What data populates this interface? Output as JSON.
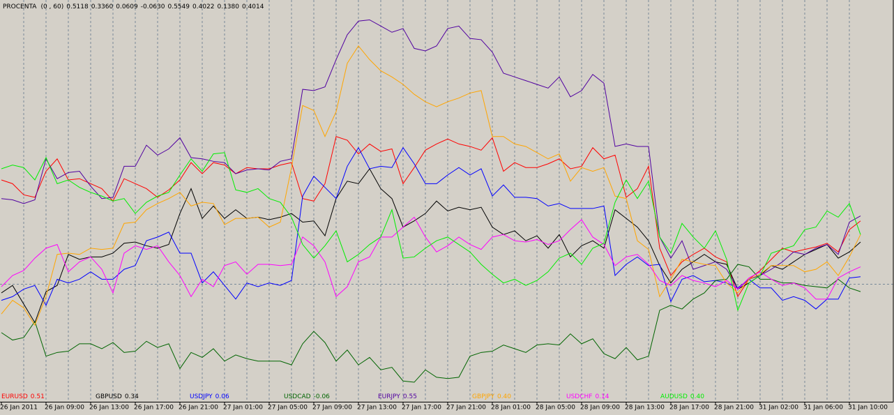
{
  "chart_data": {
    "type": "line",
    "indicator": "PROCENTA",
    "params": "(0 , 60)",
    "categories": [
      "26 Jan 2011",
      null,
      null,
      null,
      "26 Jan 09:00",
      null,
      null,
      null,
      "26 Jan 13:00",
      null,
      null,
      null,
      "26 Jan 17:00",
      null,
      null,
      null,
      "26 Jan 21:00",
      null,
      null,
      null,
      "27 Jan 01:00",
      null,
      null,
      null,
      "27 Jan 05:00",
      null,
      null,
      null,
      "27 Jan 09:00",
      null,
      null,
      null,
      "27 Jan 13:00",
      null,
      null,
      null,
      "27 Jan 17:00",
      null,
      null,
      null,
      "27 Jan 21:00",
      null,
      null,
      null,
      "28 Jan 01:00",
      null,
      null,
      null,
      "28 Jan 05:00",
      null,
      null,
      null,
      "28 Jan 09:00",
      null,
      null,
      null,
      "28 Jan 13:00",
      null,
      null,
      null,
      "28 Jan 17:00",
      null,
      null,
      null,
      "28 Jan 21:00",
      null,
      null,
      null,
      "31 Jan 02:00",
      null,
      null,
      null,
      "31 Jan 06:00",
      null,
      null,
      null,
      "31 Jan 10:00",
      null
    ],
    "ylim": [
      -0.95,
      2.29
    ],
    "hline": 0,
    "grid": true,
    "series": [
      {
        "name": "EURUSD",
        "color": "#ff0000",
        "current": 0.5118,
        "current_label": "0.5118",
        "legend_label": "0.51",
        "values": [
          0.84,
          0.81,
          0.72,
          0.7,
          0.91,
          1.01,
          0.84,
          0.85,
          0.81,
          0.77,
          0.67,
          0.85,
          0.81,
          0.77,
          0.7,
          0.76,
          0.84,
          0.98,
          0.89,
          0.98,
          0.96,
          0.89,
          0.94,
          0.93,
          0.93,
          0.96,
          0.98,
          0.69,
          0.67,
          0.81,
          1.19,
          1.16,
          1.05,
          1.13,
          1.07,
          1.09,
          0.81,
          0.94,
          1.08,
          1.13,
          1.17,
          1.13,
          1.11,
          1.08,
          1.18,
          0.91,
          0.98,
          0.94,
          0.94,
          0.97,
          1.01,
          0.93,
          0.95,
          1.1,
          1.01,
          1.04,
          0.7,
          0.77,
          0.95,
          0.29,
          0.07,
          0.18,
          0.24,
          0.29,
          0.22,
          0.18,
          -0.1,
          0.04,
          0.11,
          0.2,
          0.29,
          0.26,
          0.28,
          0.3,
          0.33,
          0.26,
          0.44,
          0.51
        ]
      },
      {
        "name": "GBPUSD",
        "color": "#000000",
        "current": 0.336,
        "current_label": "0.3360",
        "legend_label": "0.34",
        "values": [
          -0.07,
          -0.01,
          -0.16,
          -0.31,
          -0.06,
          -0.01,
          0.24,
          0.2,
          0.22,
          0.22,
          0.25,
          0.33,
          0.34,
          0.31,
          0.29,
          0.32,
          0.57,
          0.77,
          0.53,
          0.63,
          0.53,
          0.6,
          0.53,
          0.54,
          0.52,
          0.54,
          0.57,
          0.5,
          0.51,
          0.39,
          0.69,
          0.83,
          0.81,
          0.93,
          0.77,
          0.69,
          0.46,
          0.51,
          0.57,
          0.67,
          0.59,
          0.62,
          0.6,
          0.62,
          0.46,
          0.4,
          0.43,
          0.35,
          0.39,
          0.29,
          0.4,
          0.22,
          0.31,
          0.35,
          0.29,
          0.6,
          0.53,
          0.46,
          0.35,
          0.15,
          0.01,
          0.12,
          0.18,
          0.24,
          0.18,
          0.16,
          -0.04,
          0.01,
          0.07,
          0.15,
          0.12,
          0.18,
          0.24,
          0.28,
          0.32,
          0.21,
          0.26,
          0.34
        ]
      },
      {
        "name": "USDJPY",
        "color": "#0000ff",
        "current": 0.0609,
        "current_label": "0.0609",
        "legend_label": "0.06",
        "values": [
          -0.13,
          -0.1,
          -0.04,
          -0.01,
          -0.17,
          0.04,
          0.01,
          0.04,
          0.1,
          0.04,
          0.04,
          0.12,
          0.15,
          0.35,
          0.38,
          0.42,
          0.25,
          0.25,
          0.01,
          0.1,
          -0.01,
          -0.12,
          0.01,
          -0.02,
          0.01,
          -0.01,
          0.03,
          0.71,
          0.87,
          0.78,
          0.69,
          0.95,
          1.1,
          0.93,
          0.95,
          0.94,
          1.1,
          0.97,
          0.81,
          0.81,
          0.88,
          0.94,
          0.88,
          0.93,
          0.71,
          0.8,
          0.7,
          0.7,
          0.69,
          0.63,
          0.65,
          0.61,
          0.61,
          0.61,
          0.63,
          0.07,
          0.16,
          0.22,
          0.15,
          0.16,
          -0.14,
          0.04,
          0.07,
          0.02,
          0.03,
          0.01,
          -0.03,
          0.04,
          -0.03,
          -0.03,
          -0.13,
          -0.1,
          -0.13,
          -0.2,
          -0.12,
          -0.12,
          0.05,
          0.06
        ]
      },
      {
        "name": "USDCAD",
        "color": "#006400",
        "current": -0.063,
        "current_label": "-0.0630",
        "legend_label": "-0.06",
        "values": [
          -0.39,
          -0.45,
          -0.43,
          -0.3,
          -0.58,
          -0.55,
          -0.54,
          -0.48,
          -0.48,
          -0.52,
          -0.47,
          -0.55,
          -0.54,
          -0.46,
          -0.51,
          -0.48,
          -0.68,
          -0.55,
          -0.59,
          -0.52,
          -0.62,
          -0.57,
          -0.6,
          -0.62,
          -0.62,
          -0.62,
          -0.65,
          -0.48,
          -0.38,
          -0.47,
          -0.62,
          -0.53,
          -0.65,
          -0.59,
          -0.69,
          -0.67,
          -0.78,
          -0.79,
          -0.69,
          -0.75,
          -0.76,
          -0.75,
          -0.58,
          -0.55,
          -0.54,
          -0.49,
          -0.52,
          -0.55,
          -0.49,
          -0.48,
          -0.49,
          -0.4,
          -0.48,
          -0.44,
          -0.56,
          -0.6,
          -0.51,
          -0.61,
          -0.58,
          -0.21,
          -0.17,
          -0.2,
          -0.12,
          -0.07,
          0.03,
          0.04,
          0.16,
          0.14,
          0.04,
          0.04,
          0.01,
          0.01,
          -0.01,
          -0.02,
          -0.03,
          0.04,
          -0.03,
          -0.06
        ]
      },
      {
        "name": "EURJPY",
        "color": "#5000a0",
        "current": 0.5549,
        "current_label": "0.5549",
        "legend_label": "0.55",
        "values": [
          0.69,
          0.68,
          0.65,
          0.68,
          1.01,
          0.85,
          0.9,
          0.91,
          0.79,
          0.69,
          0.7,
          0.95,
          0.95,
          1.12,
          1.04,
          1.09,
          1.18,
          1.02,
          1.01,
          0.99,
          0.98,
          0.89,
          0.92,
          0.93,
          0.92,
          0.99,
          1.01,
          1.57,
          1.56,
          1.59,
          1.81,
          2.01,
          2.12,
          2.13,
          2.08,
          2.03,
          2.06,
          1.9,
          1.88,
          1.92,
          2.06,
          2.08,
          1.98,
          1.97,
          1.87,
          1.7,
          1.67,
          1.64,
          1.61,
          1.58,
          1.67,
          1.51,
          1.56,
          1.69,
          1.62,
          1.11,
          1.13,
          1.11,
          1.11,
          0.38,
          0.21,
          0.35,
          0.12,
          0.15,
          0.18,
          0.12,
          -0.04,
          0.04,
          0.07,
          0.12,
          0.18,
          0.26,
          0.24,
          0.29,
          0.32,
          0.24,
          0.5,
          0.55
        ]
      },
      {
        "name": "GBPJPY",
        "color": "#ffa500",
        "current": 0.4022,
        "current_label": "0.4022",
        "legend_label": "0.40",
        "values": [
          -0.24,
          -0.13,
          -0.19,
          -0.33,
          -0.1,
          0.24,
          0.25,
          0.24,
          0.29,
          0.28,
          0.29,
          0.49,
          0.5,
          0.6,
          0.65,
          0.69,
          0.74,
          0.63,
          0.66,
          0.65,
          0.48,
          0.53,
          0.53,
          0.54,
          0.46,
          0.5,
          0.94,
          1.44,
          1.4,
          1.19,
          1.39,
          1.78,
          1.92,
          1.81,
          1.72,
          1.67,
          1.61,
          1.53,
          1.47,
          1.43,
          1.47,
          1.5,
          1.54,
          1.56,
          1.19,
          1.19,
          1.13,
          1.11,
          1.06,
          1.01,
          1.05,
          0.83,
          0.94,
          0.91,
          0.94,
          0.71,
          0.69,
          0.35,
          0.28,
          -0.1,
          0.04,
          0.2,
          0.18,
          0.16,
          0.15,
          0.01,
          -0.07,
          0.04,
          0.08,
          0.15,
          0.15,
          0.15,
          0.1,
          0.12,
          0.18,
          0.07,
          0.22,
          0.4
        ]
      },
      {
        "name": "USDCHF",
        "color": "#ff00ff",
        "current": 0.138,
        "current_label": "0.1380",
        "legend_label": "0.14",
        "values": [
          -0.02,
          0.07,
          0.11,
          0.21,
          0.29,
          0.32,
          0.1,
          0.18,
          0.22,
          0.12,
          -0.07,
          0.25,
          0.31,
          0.28,
          0.31,
          0.18,
          0.07,
          -0.1,
          0.04,
          -0.02,
          0.15,
          0.18,
          0.08,
          0.16,
          0.16,
          0.15,
          0.16,
          0.38,
          0.31,
          0.18,
          -0.1,
          -0.02,
          0.18,
          0.22,
          0.38,
          0.38,
          0.46,
          0.54,
          0.38,
          0.26,
          0.31,
          0.38,
          0.32,
          0.28,
          0.38,
          0.4,
          0.35,
          0.34,
          0.36,
          0.32,
          0.35,
          0.44,
          0.52,
          0.38,
          0.32,
          0.15,
          0.22,
          0.24,
          0.16,
          0.03,
          -0.01,
          0.07,
          0.03,
          0.01,
          -0.02,
          0.03,
          -0.04,
          0.05,
          0.1,
          0.04,
          -0.01,
          0.01,
          -0.03,
          -0.12,
          -0.12,
          0.05,
          0.1,
          0.14
        ]
      },
      {
        "name": "AUDUSD",
        "color": "#00ee00",
        "current": 0.4014,
        "current_label": "0.4014",
        "legend_label": "0.40",
        "values": [
          0.93,
          0.96,
          0.94,
          0.84,
          1.02,
          0.81,
          0.84,
          0.78,
          0.74,
          0.71,
          0.67,
          0.69,
          0.57,
          0.66,
          0.71,
          0.74,
          0.88,
          1.01,
          0.91,
          1.05,
          1.06,
          0.76,
          0.74,
          0.77,
          0.69,
          0.66,
          0.54,
          0.32,
          0.21,
          0.31,
          0.43,
          0.18,
          0.24,
          0.32,
          0.38,
          0.6,
          0.21,
          0.22,
          0.29,
          0.35,
          0.38,
          0.32,
          0.26,
          0.16,
          0.08,
          0.01,
          0.04,
          -0.01,
          0.03,
          0.1,
          0.21,
          0.25,
          0.16,
          0.29,
          0.33,
          0.66,
          0.84,
          0.69,
          0.83,
          0.38,
          0.25,
          0.49,
          0.38,
          0.29,
          0.43,
          0.2,
          -0.21,
          0.01,
          0.07,
          0.25,
          0.28,
          0.31,
          0.44,
          0.46,
          0.59,
          0.54,
          0.65,
          0.4
        ]
      }
    ]
  }
}
